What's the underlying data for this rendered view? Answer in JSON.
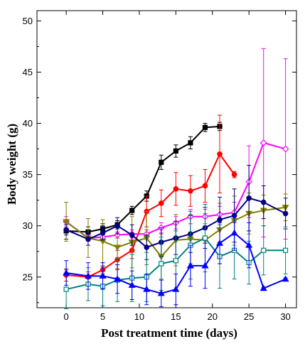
{
  "chart_data": {
    "type": "line",
    "title": "",
    "xlabel": "Post treatment time (days)",
    "ylabel": "Body weight (g)",
    "xlim": [
      -4,
      31.5
    ],
    "ylim": [
      22,
      51
    ],
    "xticks": [
      0,
      5,
      10,
      15,
      20,
      25,
      30
    ],
    "yticks": [
      25,
      30,
      35,
      40,
      45,
      50
    ],
    "grid": false,
    "legend": "none",
    "series": [
      {
        "color": "#000000",
        "marker": "square",
        "fill": true,
        "x": [
          0,
          3,
          5,
          7,
          9,
          11,
          13,
          15,
          17,
          19,
          21
        ],
        "y": [
          29.5,
          29.4,
          29.7,
          30.1,
          31.5,
          32.9,
          36.2,
          37.3,
          38.1,
          39.6,
          39.7
        ],
        "err": [
          0.8,
          0.5,
          0.5,
          0.4,
          0.4,
          0.5,
          0.7,
          0.6,
          0.6,
          0.4,
          0.4
        ]
      },
      {
        "color": "#ff0000",
        "marker": "circle",
        "fill": true,
        "x": [
          0,
          3,
          5,
          7,
          9,
          11,
          13,
          15,
          17,
          19,
          21,
          23
        ],
        "y": [
          25.2,
          25.0,
          25.7,
          26.7,
          27.6,
          31.4,
          32.2,
          33.6,
          33.4,
          33.9,
          37.0,
          35.0
        ],
        "err": [
          0.6,
          0.5,
          0.4,
          0.9,
          0.8,
          1.5,
          1.3,
          1.6,
          1.5,
          1.6,
          3.8,
          0.3
        ]
      },
      {
        "color": "#ff00ff",
        "marker": "diamond",
        "fill": false,
        "x": [
          0,
          3,
          5,
          7,
          9,
          11,
          13,
          15,
          17,
          19,
          21,
          23,
          25,
          27,
          30
        ],
        "y": [
          30.4,
          28.8,
          28.9,
          29.1,
          29.2,
          29.2,
          29.8,
          30.3,
          30.9,
          30.9,
          31.1,
          31.3,
          34.3,
          38.1,
          37.5
        ],
        "err": [
          0.5,
          0.3,
          0.3,
          0.3,
          0.4,
          0.4,
          0.5,
          0.6,
          0.7,
          0.7,
          0.8,
          1.0,
          3.5,
          9.2,
          8.8
        ]
      },
      {
        "color": "#808000",
        "marker": "triangle-down",
        "fill": true,
        "x": [
          0,
          3,
          5,
          7,
          9,
          11,
          13,
          15,
          17,
          19,
          21,
          23,
          25,
          27,
          30
        ],
        "y": [
          30.4,
          28.8,
          28.5,
          27.9,
          28.4,
          28.8,
          27.0,
          28.6,
          28.7,
          28.6,
          29.6,
          30.5,
          31.2,
          31.5,
          31.8
        ],
        "err": [
          1.9,
          1.9,
          2.1,
          2.2,
          2.5,
          2.6,
          2.2,
          2.5,
          2.4,
          2.6,
          2.6,
          2.4,
          2.0,
          1.5,
          1.3
        ]
      },
      {
        "color": "#000080",
        "marker": "circle",
        "fill": true,
        "x": [
          0,
          3,
          5,
          7,
          9,
          11,
          13,
          15,
          17,
          19,
          21,
          23,
          25,
          27,
          30
        ],
        "y": [
          29.6,
          28.7,
          29.3,
          30.0,
          29.1,
          27.9,
          28.4,
          28.8,
          29.2,
          29.8,
          30.6,
          31.0,
          32.7,
          32.3,
          31.2
        ],
        "err": [
          0.5,
          0.6,
          0.7,
          0.8,
          1.0,
          1.2,
          1.4,
          1.6,
          1.8,
          2.0,
          2.2,
          2.6,
          3.2,
          1.6,
          1.5
        ]
      },
      {
        "color": "#008080",
        "marker": "square",
        "fill": false,
        "x": [
          0,
          3,
          5,
          7,
          9,
          11,
          13,
          15,
          17,
          19,
          21,
          23,
          25,
          27,
          30
        ],
        "y": [
          23.8,
          24.3,
          24.1,
          24.7,
          24.9,
          25.0,
          26.3,
          26.6,
          28.1,
          28.8,
          27.0,
          27.6,
          26.4,
          27.6,
          27.6
        ],
        "err": [
          1.9,
          1.6,
          1.9,
          2.1,
          2.3,
          2.4,
          2.6,
          2.9,
          3.3,
          3.3,
          3.1,
          2.8,
          2.1,
          2.4,
          2.3
        ]
      },
      {
        "color": "#0000ff",
        "marker": "triangle",
        "fill": true,
        "x": [
          0,
          3,
          5,
          7,
          9,
          11,
          13,
          15,
          17,
          19,
          21,
          23,
          25,
          27,
          30
        ],
        "y": [
          25.4,
          25.1,
          25.1,
          24.8,
          24.2,
          23.8,
          23.4,
          23.8,
          26.1,
          26.1,
          28.3,
          29.3,
          28.1,
          23.9,
          24.8
        ],
        "err": [
          1.2,
          1.3,
          1.3,
          1.4,
          1.4,
          1.5,
          1.3,
          1.5,
          2.0,
          2.2,
          2.0,
          1.7,
          2.2,
          0.1,
          0.1
        ]
      }
    ]
  }
}
